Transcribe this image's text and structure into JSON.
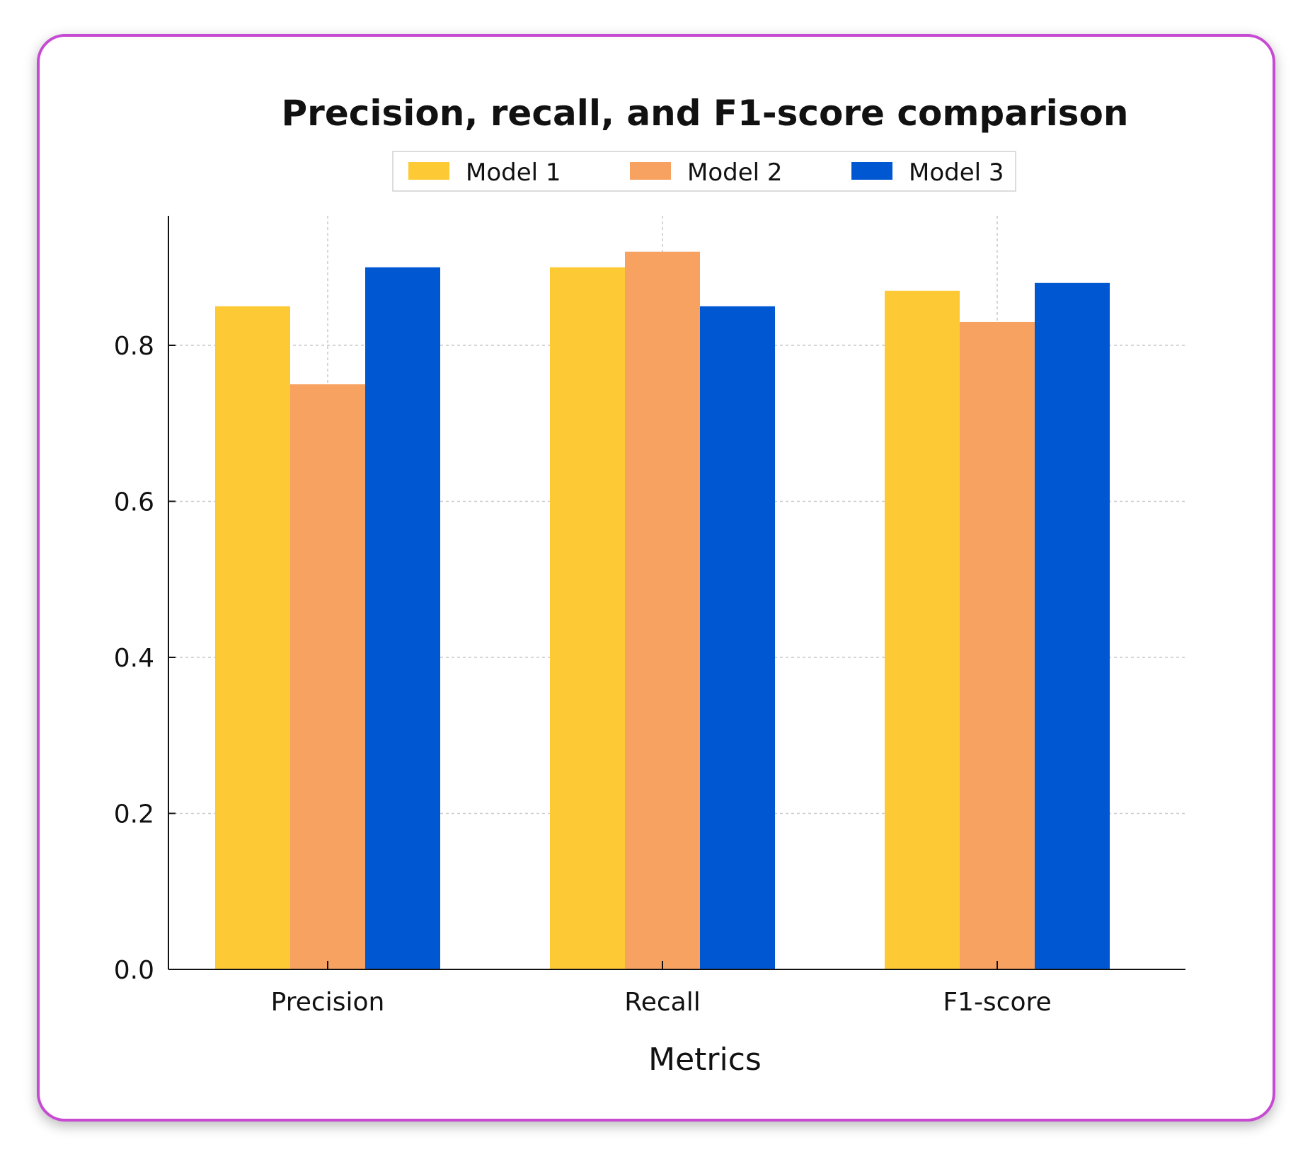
{
  "chart_data": {
    "type": "bar",
    "title": "Precision, recall, and F1-score comparison",
    "xlabel": "Metrics",
    "ylabel": "",
    "categories": [
      "Precision",
      "Recall",
      "F1-score"
    ],
    "series": [
      {
        "name": "Model 1",
        "color": "#fdc934",
        "values": [
          0.85,
          0.9,
          0.87
        ]
      },
      {
        "name": "Model 2",
        "color": "#f8a262",
        "values": [
          0.75,
          0.92,
          0.83
        ]
      },
      {
        "name": "Model 3",
        "color": "#0057d2",
        "values": [
          0.9,
          0.85,
          0.88
        ]
      }
    ],
    "ylim": [
      0,
      0.966
    ],
    "yticks": [
      0.0,
      0.2,
      0.4,
      0.6,
      0.8
    ],
    "ytick_labels": [
      "0.0",
      "0.2",
      "0.4",
      "0.6",
      "0.8"
    ],
    "grid": true,
    "legend_position": "top-center"
  }
}
